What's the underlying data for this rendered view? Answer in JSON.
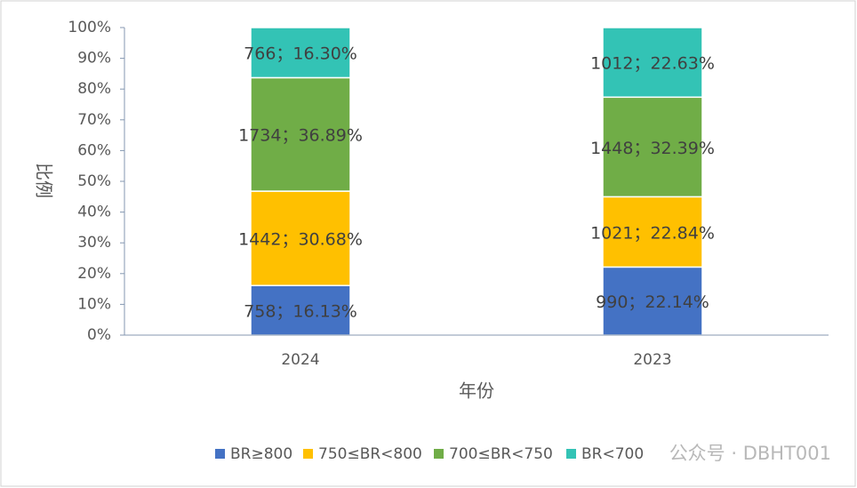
{
  "chart_data": {
    "type": "stacked_bar",
    "x_label": "年份",
    "y_label": "比例",
    "categories": [
      "2024",
      "2023"
    ],
    "series": [
      {
        "name": "BR≥800",
        "color": "#4472c4",
        "values": [
          16.13,
          22.14
        ],
        "value_labels": [
          "758；16.13%",
          "990；22.14%"
        ]
      },
      {
        "name": "750≤BR<800",
        "color": "#ffc000",
        "values": [
          30.68,
          22.84
        ],
        "value_labels": [
          "1442；30.68%",
          "1021；22.84%"
        ]
      },
      {
        "name": "700≤BR<750",
        "color": "#70ad47",
        "values": [
          36.89,
          32.39
        ],
        "value_labels": [
          "1734；36.89%",
          "1448；32.39%"
        ]
      },
      {
        "name": "BR<700",
        "color": "#33c3b5",
        "values": [
          16.3,
          22.63
        ],
        "value_labels": [
          "766；16.30%",
          "1012；22.63%"
        ]
      }
    ],
    "ylim": [
      0,
      100
    ],
    "yticks": [
      {
        "value": 0,
        "label": "0%"
      },
      {
        "value": 10,
        "label": "10%"
      },
      {
        "value": 20,
        "label": "20%"
      },
      {
        "value": 30,
        "label": "30%"
      },
      {
        "value": 40,
        "label": "40%"
      },
      {
        "value": 50,
        "label": "50%"
      },
      {
        "value": 60,
        "label": "60%"
      },
      {
        "value": 70,
        "label": "70%"
      },
      {
        "value": 80,
        "label": "80%"
      },
      {
        "value": 90,
        "label": "90%"
      },
      {
        "value": 100,
        "label": "100%"
      }
    ],
    "grid": false,
    "legend": "bottom",
    "watermark": "公众号 · DBHT001"
  }
}
